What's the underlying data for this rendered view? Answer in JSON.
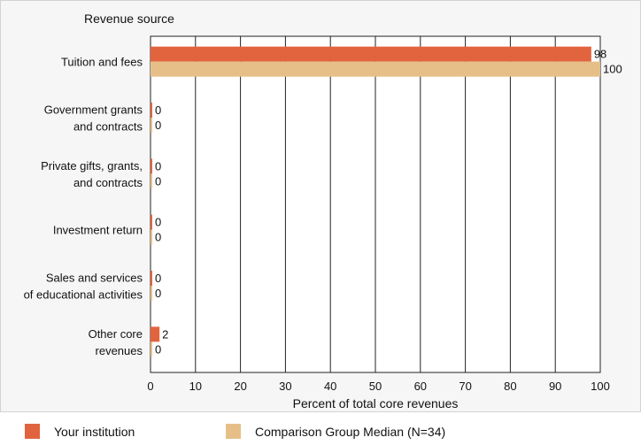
{
  "chart_data": {
    "type": "bar",
    "orientation": "horizontal",
    "category_axis_title": "Revenue source",
    "xlabel": "Percent of total core revenues",
    "xlim": [
      0,
      100
    ],
    "xticks": [
      "0",
      "10",
      "20",
      "30",
      "40",
      "50",
      "60",
      "70",
      "80",
      "90",
      "100"
    ],
    "grid": true,
    "categories": [
      [
        "Tuition and fees"
      ],
      [
        "Government grants",
        "and contracts"
      ],
      [
        "Private gifts, grants,",
        "and contracts"
      ],
      [
        "Investment return"
      ],
      [
        "Sales and services",
        "of educational activities"
      ],
      [
        "Other core",
        "revenues"
      ]
    ],
    "series": [
      {
        "name": "Your institution",
        "color": "#e2643f",
        "values": [
          98,
          0,
          0,
          0,
          0,
          2
        ]
      },
      {
        "name": "Comparison Group Median (N=34)",
        "color": "#e6bf88",
        "values": [
          100,
          0,
          0,
          0,
          0,
          0
        ]
      }
    ],
    "legend_position": "bottom"
  }
}
